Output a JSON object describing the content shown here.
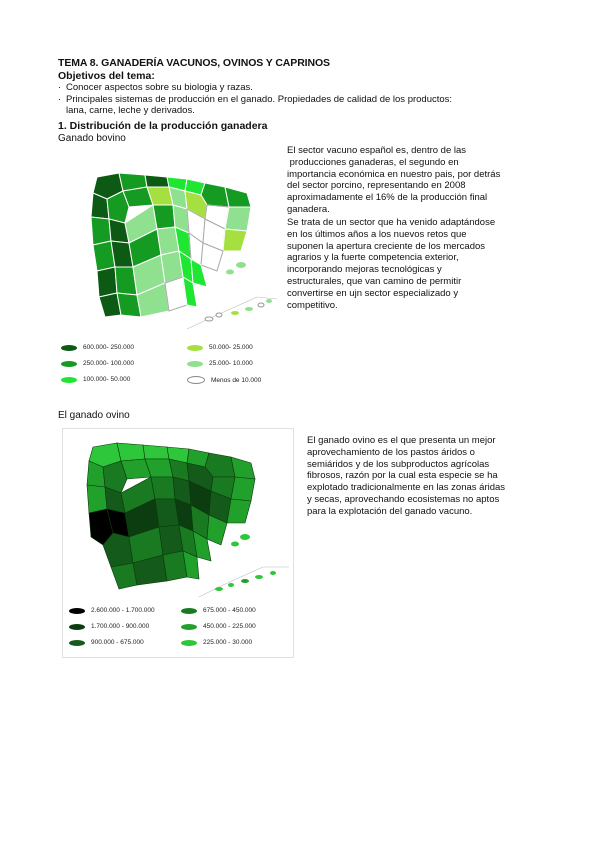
{
  "heading": {
    "title": "TEMA 8. GANADERÍA VACUNOS, OVINOS Y CAPRINOS",
    "objectives_title": "Objetivos del tema:",
    "objectives": [
      "Conocer aspectos sobre su biologia y razas.",
      "Principales sistemas de producción en el ganado. Propiedades de calidad de los productos:"
    ],
    "objectives_cont": "lana, carne, leche y derivados.",
    "section": "1.   Distribución de la producción ganadera"
  },
  "bovino": {
    "label": "Ganado bovino",
    "para1": [
      "El sector vacuno español es, dentro de las",
      " producciones ganaderas, el segundo en",
      "importancia económica en nuestro pais, por detrás",
      "del sector porcino, representando en 2008",
      "aproximadamente el 16% de la producción final",
      "ganadera."
    ],
    "para2": [
      "Se trata de un sector que ha venido adaptándose",
      "en los últimos años a los nuevos retos que",
      "suponen la apertura creciente de los mercados",
      "agrarios y la fuerte competencia exterior,",
      "incorporando mejoras tecnológicas y",
      "estructurales, que van camino de permitir",
      "convertirse en ujn sector especializado y",
      "competitivo."
    ],
    "legend": [
      {
        "label": "600.000- 250.000",
        "color": "#0d5a14"
      },
      {
        "label": "250.000- 100.000",
        "color": "#159a22"
      },
      {
        "label": "100.000- 50.000",
        "color": "#1ee632"
      },
      {
        "label": "50.000- 25.000",
        "color": "#a6e040"
      },
      {
        "label": "25.000- 10.000",
        "color": "#8fe08f"
      },
      {
        "label": "Menos de 10.000",
        "color": "#ffffff"
      }
    ]
  },
  "ovino": {
    "label": "El ganado ovino",
    "para": [
      "El ganado ovino es el que presenta un mejor",
      "aprovechamiento de los pastos áridos o",
      "semiáridos y de los subproductos agrícolas",
      "fibrosos, razón por la cual esta especie se ha",
      "explotado tradicionalmente en las zonas áridas",
      "y secas, aprovechando ecosistemas no aptos",
      "para la explotación del ganado vacuno."
    ],
    "legend": [
      {
        "label": "2.600.000 - 1.700.000",
        "color": "#000000"
      },
      {
        "label": "1.700.000 - 900.000",
        "color": "#0b3d10"
      },
      {
        "label": "900.000 - 675.000",
        "color": "#145a1a"
      },
      {
        "label": "675.000 - 450.000",
        "color": "#197a22"
      },
      {
        "label": "450.000 - 225.000",
        "color": "#21a02c"
      },
      {
        "label": "225.000 - 30.000",
        "color": "#2ec73b"
      }
    ]
  }
}
